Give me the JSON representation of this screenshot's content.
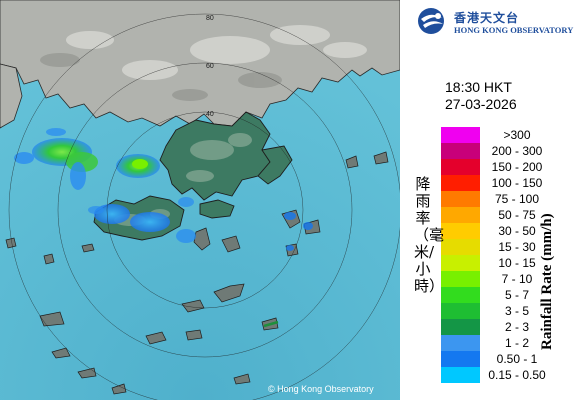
{
  "map": {
    "sea_color": "#58b8d2",
    "land_color": "#b0b2ad",
    "terrain_color": "#2f6e58",
    "range_ring_labels": [
      "80",
      "60",
      "40"
    ],
    "copyright": "© Hong Kong Observatory"
  },
  "header": {
    "logo_zh": "香港天文台",
    "logo_en": "HONG KONG OBSERVATORY",
    "logo_icon": "hko-logo-icon"
  },
  "timestamp": {
    "time": "18:30 HKT",
    "date": "27-03-2026"
  },
  "legend": {
    "title_zh": "降雨率（毫米/小時）",
    "title_en": "Rainfall Rate (mm/h)",
    "items": [
      {
        "label": ">300",
        "color": "#f000f0"
      },
      {
        "label": "200 - 300",
        "color": "#c8007a"
      },
      {
        "label": "150 - 200",
        "color": "#e4002c"
      },
      {
        "label": "100 - 150",
        "color": "#ff1e00"
      },
      {
        "label": "75 - 100",
        "color": "#ff7a00"
      },
      {
        "label": "50 - 75",
        "color": "#ffa800"
      },
      {
        "label": "30 - 50",
        "color": "#ffcc00"
      },
      {
        "label": "15 - 30",
        "color": "#e6dc00"
      },
      {
        "label": "10 - 15",
        "color": "#c8f000"
      },
      {
        "label": "7 - 10",
        "color": "#78f000"
      },
      {
        "label": "5 - 7",
        "color": "#32dc1e"
      },
      {
        "label": "3 - 5",
        "color": "#1ebe32"
      },
      {
        "label": "2 - 3",
        "color": "#149646"
      },
      {
        "label": "1 - 2",
        "color": "#3c96f0"
      },
      {
        "label": "0.50 - 1",
        "color": "#1478f0"
      },
      {
        "label": "0.15 - 0.50",
        "color": "#00c8ff"
      }
    ]
  }
}
